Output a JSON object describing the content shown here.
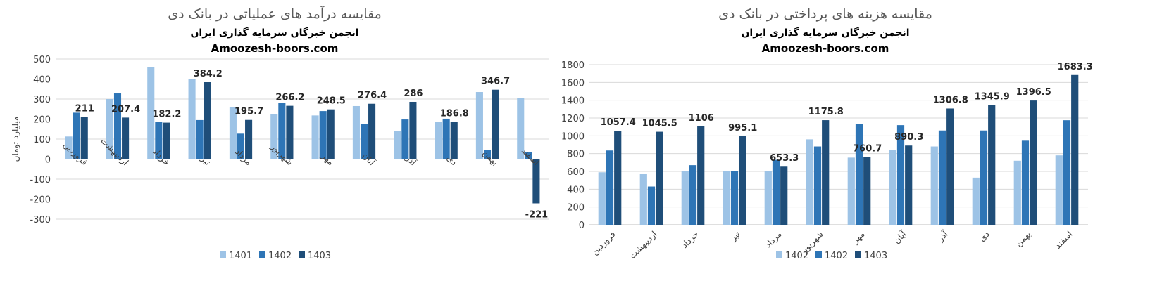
{
  "colors": {
    "s1": "#9dc3e6",
    "s2": "#2e75b6",
    "s3": "#1f4e79",
    "grid": "#d9d9d9",
    "axis": "#bfbfbf"
  },
  "chart_data": [
    {
      "type": "bar",
      "title": "مقایسه درآمد های عملیاتی در بانک دی",
      "subtitle": "انجمن خبرگان سرمایه گذاری ایران",
      "site": "Amoozesh-boors.com",
      "ylabel": "میلیارد تومان",
      "ylim": [
        -300,
        500
      ],
      "yticks": [
        500,
        400,
        300,
        200,
        100,
        0,
        -100,
        -200,
        -300
      ],
      "grid": true,
      "legend_position": "bottom",
      "categories": [
        "فروردین",
        "اردیبهشت",
        "خرداد",
        "تیر",
        "مرداد",
        "شهریور",
        "مهر",
        "آبان",
        "آذر",
        "دی",
        "بهمن",
        "اسفند"
      ],
      "series": [
        {
          "name": "1401",
          "values": [
            113,
            300,
            460,
            400,
            258,
            225,
            218,
            265,
            140,
            185,
            335,
            305
          ]
        },
        {
          "name": "1402",
          "values": [
            232,
            328,
            185,
            195,
            127,
            280,
            240,
            177,
            198,
            202,
            45,
            35
          ]
        },
        {
          "name": "1403",
          "values": [
            211,
            207.4,
            182.2,
            384.2,
            195.7,
            266.2,
            248.5,
            276.4,
            286,
            186.8,
            346.7,
            -221
          ]
        }
      ],
      "data_labels": [
        "211",
        "207.4",
        "182.2",
        "384.2",
        "195.7",
        "266.2",
        "248.5",
        "276.4",
        "286",
        "186.8",
        "346.7",
        "-221"
      ]
    },
    {
      "type": "bar",
      "title": "مقایسه هزینه های پرداختی در بانک دی",
      "subtitle": "انجمن خبرگان سرمایه گذاری ایران",
      "site": "Amoozesh-boors.com",
      "ylabel": "",
      "ylim": [
        0,
        1800
      ],
      "yticks": [
        1800,
        1600,
        1400,
        1200,
        1000,
        800,
        600,
        400,
        200,
        0
      ],
      "grid": true,
      "legend_position": "bottom",
      "categories": [
        "فروردین",
        "اردیبهشت",
        "خرداد",
        "تیر",
        "مرداد",
        "شهریور",
        "مهر",
        "آبان",
        "آذر",
        "دی",
        "بهمن",
        "اسفند"
      ],
      "series": [
        {
          "name": "1402",
          "values": [
            590,
            575,
            605,
            600,
            605,
            960,
            755,
            840,
            880,
            530,
            720,
            780
          ]
        },
        {
          "name": "1402",
          "values": [
            835,
            430,
            670,
            600,
            730,
            880,
            1130,
            1120,
            1060,
            1060,
            945,
            1175
          ]
        },
        {
          "name": "1403",
          "values": [
            1057.4,
            1045.5,
            1106,
            995.1,
            653.3,
            1175.8,
            760.7,
            890.3,
            1306.8,
            1345.9,
            1396.5,
            1683.3
          ]
        }
      ],
      "data_labels": [
        "1057.4",
        "1045.5",
        "1106",
        "995.1",
        "653.3",
        "1175.8",
        "760.7",
        "890.3",
        "1306.8",
        "1345.9",
        "1396.5",
        "1683.3"
      ]
    }
  ]
}
